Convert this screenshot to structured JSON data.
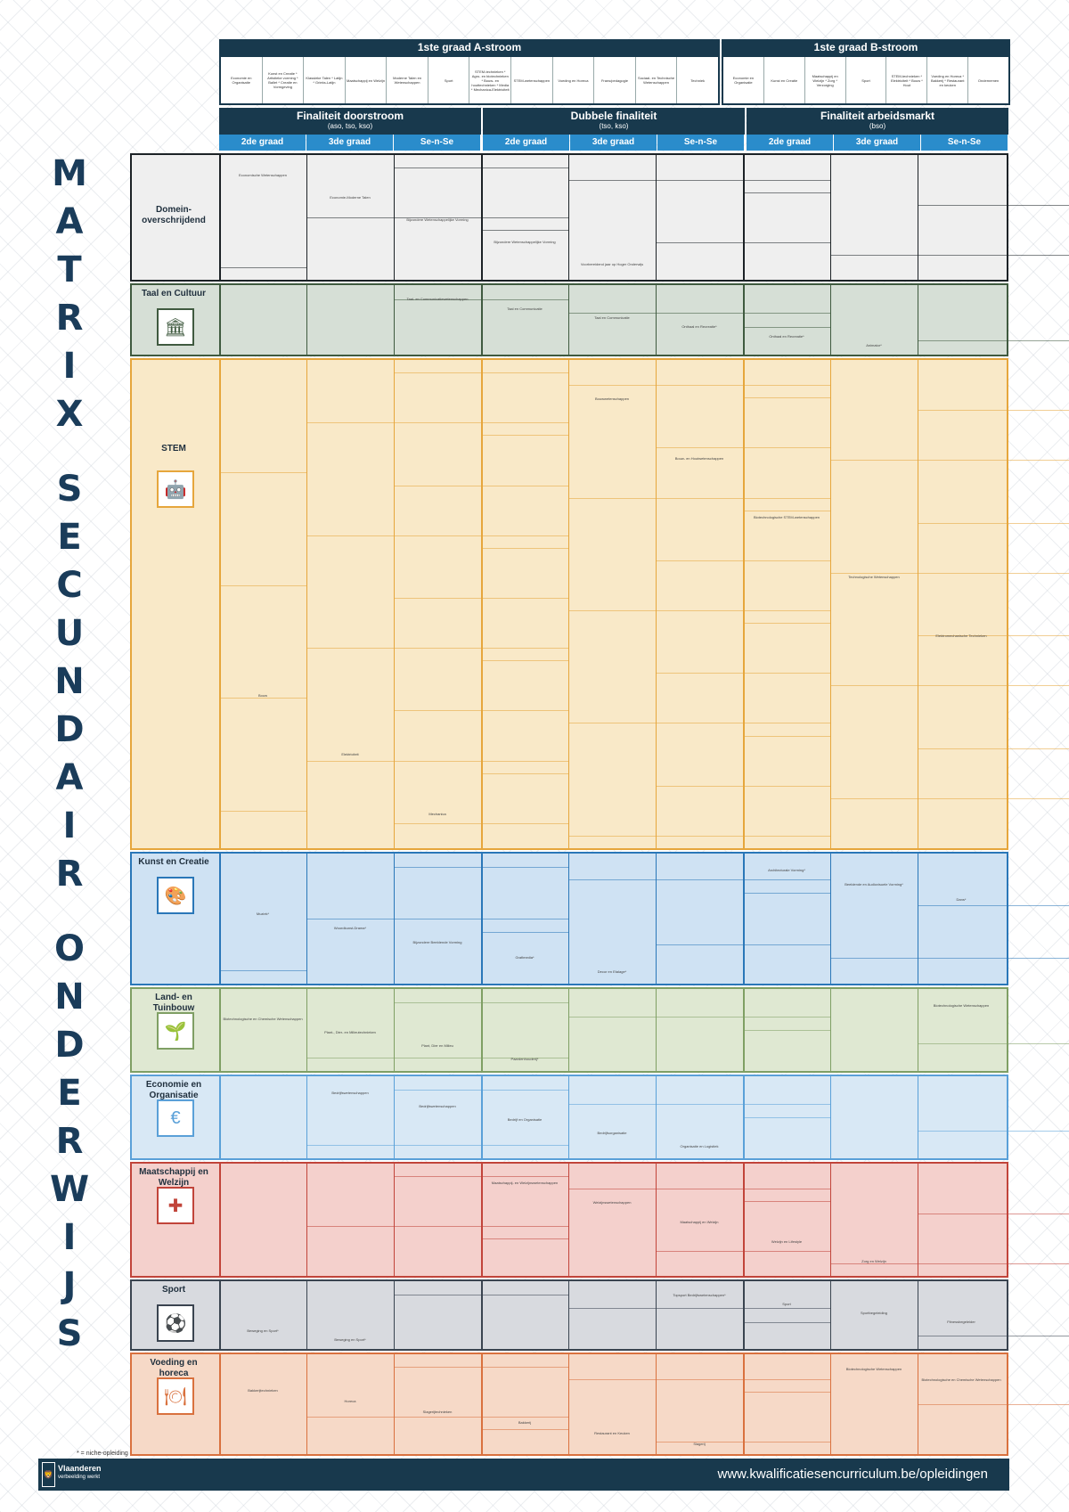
{
  "title_letters": [
    "M",
    "A",
    "T",
    "R",
    "I",
    "X",
    "",
    "S",
    "E",
    "C",
    "U",
    "N",
    "D",
    "A",
    "I",
    "R",
    "",
    "O",
    "N",
    "D",
    "E",
    "R",
    "W",
    "I",
    "J",
    "S"
  ],
  "stream_a": {
    "title": "1ste graad A-stroom",
    "items": [
      "Economie en Organisatie",
      "Kunst en Creatie * Artistieke vorming * Ballet * Creatie en Vormgeving",
      "Klassieke Talen * Latijn * Grieks-Latijn",
      "Maatschappij en Welzijn",
      "Moderne Talen en Wetenschappen",
      "Sport",
      "STEM-technieken * Agro- en biotechnieken * Bouw- en houttechnieken * Media * Mechanica-Elektriciteit",
      "STEM-wetenschappen",
      "Voeding en Horeca",
      "Frans/pedagogie",
      "Sociaal- en Technische Wetenschappen",
      "Techniek"
    ]
  },
  "stream_b": {
    "title": "1ste graad B-stroom",
    "items": [
      "Economie en Organisatie",
      "Kunst en Creatie",
      "Maatschappij en Welzijn * Zorg * Verzorging",
      "Sport",
      "STEM-technieken * Elektriciteit * Bouw * Hout",
      "Voeding en Horeca * Bakkerij * Restaurant en keuken",
      "Ondernemen"
    ]
  },
  "finaliteiten": [
    {
      "title": "Finaliteit doorstroom",
      "sub": "(aso, tso, kso)",
      "cols": [
        "2de graad",
        "3de graad",
        "Se-n-Se"
      ]
    },
    {
      "title": "Dubbele finaliteit",
      "sub": "(tso, kso)",
      "cols": [
        "2de graad",
        "3de graad",
        "Se-n-Se"
      ]
    },
    {
      "title": "Finaliteit arbeidsmarkt",
      "sub": "(bso)",
      "cols": [
        "2de graad",
        "3de graad",
        "Se-n-Se"
      ]
    }
  ],
  "domains": [
    {
      "name": "Domein-\noverschrijdend",
      "cells": [
        "Economische Wetenschappen",
        "Economie-Moderne Talen",
        "Bijzondere Wetenschappelijke Vorming",
        "Bijzondere Wetenschappelijke Vorming",
        "Voorbereidend jaar op Hoger Onderwijs"
      ]
    },
    {
      "name": "Taal en Cultuur",
      "cells": [
        "Taal- en Communicatiewetenschappen",
        "Taal en Communicatie",
        "Taal en Communicatie",
        "Onthaal en Recreatie*",
        "Onthaal en Recreatie*",
        "Animator*"
      ]
    },
    {
      "name": "STEM",
      "cells": [
        "Bouwwetenschappen",
        "Bouw- en Houtwetenschappen",
        "Biotechnologische STEM-wetenschappen",
        "Technologische Wetenschappen",
        "Elektromechanische Technieken",
        "Bouw",
        "Elektriciteit",
        "Mechanica"
      ]
    },
    {
      "name": "Kunst en Creatie",
      "cells": [
        "Architecturale Vorming*",
        "Beeldende en Audiovisuele Vorming*",
        "Dans*",
        "Muziek*",
        "Woordkunst-Drama*",
        "Bijzondere Beeldende Vorming",
        "Grafimedia*",
        "Decor en Etalage*"
      ]
    },
    {
      "name": "Land- en\nTuinbouw",
      "cells": [
        "Biotechnologische Wetenschappen",
        "Biotechnologische en Chemische Wetenschappen",
        "Plant-, Dier- en Milieutechnieken",
        "Plant, Dier en Milieu",
        "Paardenhouderij*"
      ]
    },
    {
      "name": "Economie en\nOrganisatie",
      "cells": [
        "Bedrijfswetenschappen",
        "Bedrijfswetenschappen",
        "Bedrijf en Organisatie",
        "Bedrijfsorganisatie",
        "Organisatie en Logistiek"
      ]
    },
    {
      "name": "Maatschappij en\nWelzijn",
      "cells": [
        "Maatschappij- en Welzijnswetenschappen",
        "Welzijnswetenschappen",
        "Maatschappij en Welzijn",
        "Welzijn en Lifestyle",
        "Zorg en Welzijn"
      ]
    },
    {
      "name": "Sport",
      "cells": [
        "Topsport Bedrijfswetenschappen*",
        "Sport",
        "Sportbegeleiding",
        "Fitnessbegeleider",
        "Beweging en Sport*",
        "Beweging en Sport*"
      ]
    },
    {
      "name": "Voeding en\nhoreca",
      "cells": [
        "Biotechnologische Wetenschappen",
        "Biotechnologische en Chemische Wetenschappen",
        "Bakkerijtechnieken",
        "Horeca",
        "Slagerijtechnieken",
        "Bakkerij",
        "Restaurant en Keuken",
        "Slagerij"
      ]
    }
  ],
  "footnote": "* = niche-opleiding",
  "footer": {
    "brand": "Vlaanderen",
    "tagline": "verbeelding werkt",
    "url": "www.kwalificatiesencurriculum.be/opleidingen"
  },
  "colors": {
    "navy": "#18394d",
    "blue": "#2a8ccb"
  }
}
